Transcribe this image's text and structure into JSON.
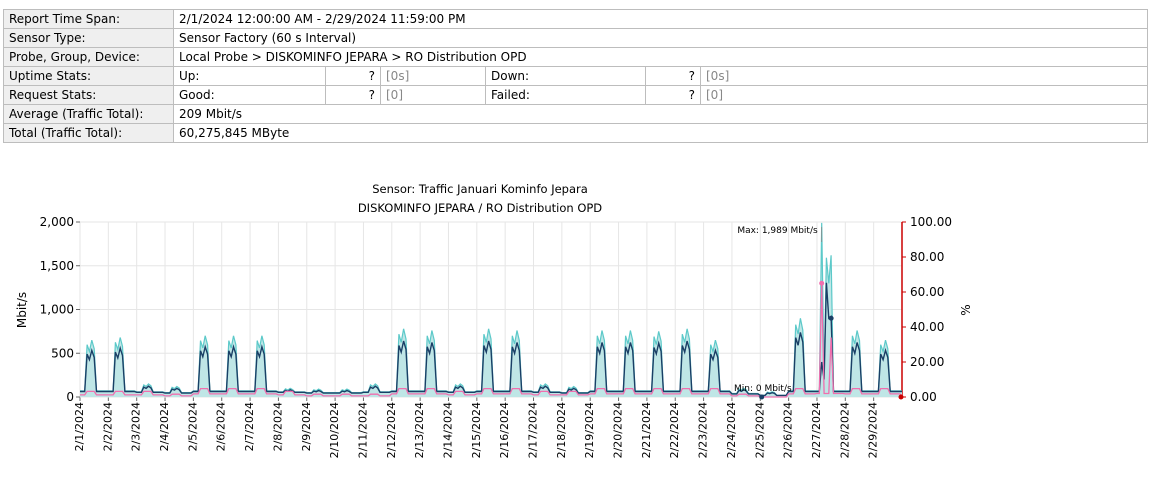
{
  "report": {
    "rows": [
      {
        "label": "Report Time Span:",
        "value": "2/1/2024 12:00:00 AM - 2/29/2024 11:59:00 PM"
      },
      {
        "label": "Sensor Type:",
        "value": "Sensor Factory (60 s Interval)"
      },
      {
        "label": "Probe, Group, Device:",
        "value": "Local Probe > DISKOMINFO JEPARA > RO Distribution OPD"
      }
    ],
    "uptime": {
      "label": "Uptime Stats:",
      "a_label": "Up:",
      "a_q": "?",
      "a_val": "[0s]",
      "b_label": "Down:",
      "b_q": "?",
      "b_val": "[0s]"
    },
    "request": {
      "label": "Request Stats:",
      "a_label": "Good:",
      "a_q": "?",
      "a_val": "[0]",
      "b_label": "Failed:",
      "b_q": "?",
      "b_val": "[0]"
    },
    "average": {
      "label": "Average (Traffic Total):",
      "value": "209 Mbit/s"
    },
    "total": {
      "label": "Total (Traffic Total):",
      "value": "60,275,845 MByte"
    }
  },
  "chart_data": {
    "type": "area",
    "title": "Sensor: Traffic Januari Kominfo Jepara",
    "subtitle": "DISKOMINFO JEPARA / RO Distribution OPD",
    "ylabel": "Mbit/s",
    "y2label": "%",
    "ylim": [
      0,
      2000
    ],
    "y2lim": [
      0,
      100
    ],
    "yticks": [
      "0",
      "500",
      "1,000",
      "1,500",
      "2,000"
    ],
    "y2ticks": [
      "0.00",
      "20.00",
      "40.00",
      "60.00",
      "80.00",
      "100.00"
    ],
    "categories": [
      "2/1/2024",
      "2/2/2024",
      "2/3/2024",
      "2/4/2024",
      "2/5/2024",
      "2/6/2024",
      "2/7/2024",
      "2/8/2024",
      "2/9/2024",
      "2/10/2024",
      "2/11/2024",
      "2/12/2024",
      "2/13/2024",
      "2/14/2024",
      "2/15/2024",
      "2/16/2024",
      "2/17/2024",
      "2/18/2024",
      "2/19/2024",
      "2/20/2024",
      "2/21/2024",
      "2/22/2024",
      "2/23/2024",
      "2/24/2024",
      "2/25/2024",
      "2/26/2024",
      "2/27/2024",
      "2/28/2024",
      "2/29/2024"
    ],
    "daily_peak_mbit": [
      650,
      680,
      150,
      120,
      700,
      700,
      700,
      100,
      90,
      90,
      150,
      780,
      760,
      150,
      780,
      760,
      150,
      120,
      760,
      760,
      750,
      780,
      650,
      100,
      60,
      900,
      1990,
      760,
      650
    ],
    "daily_base_mbit": [
      70,
      70,
      60,
      50,
      70,
      70,
      70,
      60,
      50,
      50,
      60,
      70,
      70,
      60,
      70,
      70,
      60,
      50,
      70,
      70,
      70,
      70,
      70,
      40,
      20,
      70,
      70,
      70,
      70
    ],
    "pct_series_pct": [
      2,
      2,
      2,
      1,
      3,
      3,
      3,
      2,
      1,
      1,
      1,
      3,
      3,
      2,
      3,
      3,
      2,
      2,
      3,
      3,
      3,
      3,
      3,
      1,
      0,
      3,
      65,
      3,
      3
    ],
    "annotations": {
      "max_label": "Max: 1,989 Mbit/s",
      "min_label": "Min: 0 Mbit/s"
    },
    "colors": {
      "area_fill": "#bfe6e6",
      "area_line": "#5cc9c9",
      "avg_line": "#1a3f66",
      "pct_line": "#f06fae",
      "right_axis": "#cc0000"
    }
  }
}
